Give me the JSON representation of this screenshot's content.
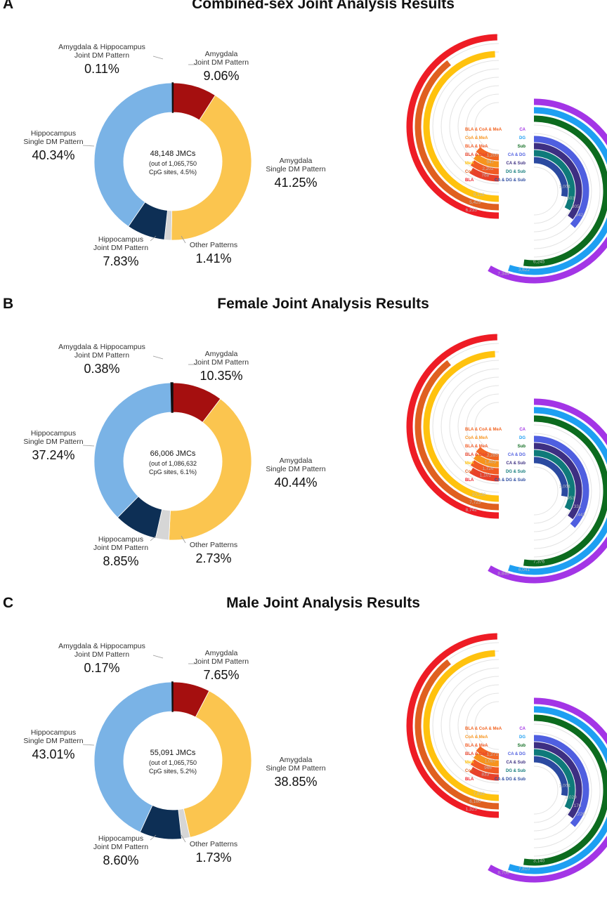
{
  "panels": [
    {
      "letter": "A",
      "title": "Combined-sex Joint Analysis Results",
      "center": {
        "main": "48,148 JMCs",
        "line2": "(out of 1,065,750",
        "line3": "CpG sites, 4.5%)"
      },
      "chart_data": {
        "type": "pie",
        "slices": [
          {
            "name_lines": [
              "Amygdala",
              "Joint DM Pattern"
            ],
            "pct_label": "9.06%",
            "value": 9.06,
            "color": "#a50f0f"
          },
          {
            "name_lines": [
              "Amygdala",
              "Single DM Pattern"
            ],
            "pct_label": "41.25%",
            "value": 41.25,
            "color": "#fbc54f"
          },
          {
            "name_lines": [
              "Other Patterns"
            ],
            "pct_label": "1.41%",
            "value": 1.41,
            "color": "#d6d6d6"
          },
          {
            "name_lines": [
              "Hippocampus",
              "Joint DM Pattern"
            ],
            "pct_label": "7.83%",
            "value": 7.83,
            "color": "#0d2f55"
          },
          {
            "name_lines": [
              "Hippocampus",
              "Single DM Pattern"
            ],
            "pct_label": "40.34%",
            "value": 40.34,
            "color": "#7ab3e6"
          },
          {
            "name_lines": [
              "Amygdala & Hippocampus",
              "Joint DM Pattern"
            ],
            "pct_label": "0.11%",
            "value": 0.11,
            "color": "#111111"
          }
        ]
      },
      "amygdala_arcs": {
        "labels": [
          "BLA & CoA & MeA",
          "CoA & MeA",
          "BLA & MeA",
          "BLA & CoA",
          "MeA",
          "CoA",
          "BLA"
        ],
        "colors": [
          "#f26522",
          "#f7941d",
          "#f15a24",
          "#e8412a",
          "#ffc20e",
          "#e06020",
          "#ee1c25"
        ],
        "values": [
          "1,200",
          "947",
          "2,202",
          "768",
          "9,118",
          "5,429",
          "6,233"
        ]
      },
      "hippocampus_arcs": {
        "labels": [
          "CA",
          "DG",
          "Sub",
          "CA & DG",
          "CA & Sub",
          "DG & Sub",
          "CA & DG & Sub"
        ],
        "colors": [
          "#a335e6",
          "#1e9ff2",
          "#0c6b1e",
          "#4f5fe0",
          "#3d2f82",
          "#0f7a7a",
          "#2b4aa0"
        ],
        "values": [
          "7,344",
          "3,622",
          "6,245",
          "942",
          "905",
          "603",
          "1,004"
        ]
      }
    },
    {
      "letter": "B",
      "title": "Female Joint Analysis Results",
      "center": {
        "main": "66,006 JMCs",
        "line2": "(out of 1,086,632",
        "line3": "CpG sites, 6.1%)"
      },
      "chart_data": {
        "type": "pie",
        "slices": [
          {
            "name_lines": [
              "Amygdala",
              "Joint DM Pattern"
            ],
            "pct_label": "10.35%",
            "value": 10.35,
            "color": "#a50f0f"
          },
          {
            "name_lines": [
              "Amygdala",
              "Single DM Pattern"
            ],
            "pct_label": "40.44%",
            "value": 40.44,
            "color": "#fbc54f"
          },
          {
            "name_lines": [
              "Other Patterns"
            ],
            "pct_label": "2.73%",
            "value": 2.73,
            "color": "#d6d6d6"
          },
          {
            "name_lines": [
              "Hippocampus",
              "Joint DM Pattern"
            ],
            "pct_label": "8.85%",
            "value": 8.85,
            "color": "#0d2f55"
          },
          {
            "name_lines": [
              "Hippocampus",
              "Single DM Pattern"
            ],
            "pct_label": "37.24%",
            "value": 37.24,
            "color": "#7ab3e6"
          },
          {
            "name_lines": [
              "Amygdala & Hippocampus",
              "Joint DM Pattern"
            ],
            "pct_label": "0.38%",
            "value": 0.38,
            "color": "#111111"
          }
        ]
      },
      "amygdala_arcs": {
        "labels": [
          "BLA & CoA & MeA",
          "CoA & MeA",
          "BLA & MeA",
          "BLA & CoA",
          "MeA",
          "CoA",
          "BLA"
        ],
        "colors": [
          "#f26522",
          "#f7941d",
          "#f15a24",
          "#e8412a",
          "#ffc20e",
          "#e06020",
          "#ee1c25"
        ],
        "values": [
          "2,285",
          "1,403",
          "1,726",
          "1,101",
          "10,230",
          "7,723",
          "8,742"
        ]
      },
      "hippocampus_arcs": {
        "labels": [
          "CA",
          "DG",
          "Sub",
          "CA & DG",
          "CA & Sub",
          "DG & Sub",
          "CA & DG & Sub"
        ],
        "colors": [
          "#a335e6",
          "#1e9ff2",
          "#0c6b1e",
          "#4f5fe0",
          "#3d2f82",
          "#0f7a7a",
          "#2b4aa0"
        ],
        "values": [
          "8,846",
          "6,041",
          "7,376",
          "1,442",
          "1,331",
          "953",
          "1,004"
        ]
      }
    },
    {
      "letter": "C",
      "title": "Male Joint Analysis Results",
      "center": {
        "main": "55,091 JMCs",
        "line2": "(out of 1,065,750",
        "line3": "CpG sites, 5.2%)"
      },
      "chart_data": {
        "type": "pie",
        "slices": [
          {
            "name_lines": [
              "Amygdala",
              "Joint DM Pattern"
            ],
            "pct_label": "7.65%",
            "value": 7.65,
            "color": "#a50f0f"
          },
          {
            "name_lines": [
              "Amygdala",
              "Single DM Pattern"
            ],
            "pct_label": "38.85%",
            "value": 38.85,
            "color": "#fbc54f"
          },
          {
            "name_lines": [
              "Other Patterns"
            ],
            "pct_label": "1.73%",
            "value": 1.73,
            "color": "#d6d6d6"
          },
          {
            "name_lines": [
              "Hippocampus",
              "Joint DM Pattern"
            ],
            "pct_label": "8.60%",
            "value": 8.6,
            "color": "#0d2f55"
          },
          {
            "name_lines": [
              "Hippocampus",
              "Single DM Pattern"
            ],
            "pct_label": "43.01%",
            "value": 43.01,
            "color": "#7ab3e6"
          },
          {
            "name_lines": [
              "Amygdala & Hippocampus",
              "Joint DM Pattern"
            ],
            "pct_label": "0.17%",
            "value": 0.17,
            "color": "#111111"
          }
        ]
      },
      "amygdala_arcs": {
        "labels": [
          "BLA & CoA & MeA",
          "CoA & MeA",
          "BLA & MeA",
          "BLA & CoA",
          "MeA",
          "CoA",
          "BLA"
        ],
        "colors": [
          "#f26522",
          "#f7941d",
          "#f15a24",
          "#e8412a",
          "#ffc20e",
          "#e06020",
          "#ee1c25"
        ],
        "values": [
          "1,271",
          "1,007",
          "966",
          "833",
          "7,893",
          "6,160",
          "1,323"
        ]
      },
      "hippocampus_arcs": {
        "labels": [
          "CA",
          "DG",
          "Sub",
          "CA & DG",
          "CA & Sub",
          "DG & Sub",
          "CA & DG & Sub"
        ],
        "colors": [
          "#a335e6",
          "#1e9ff2",
          "#0c6b1e",
          "#4f5fe0",
          "#3d2f82",
          "#0f7a7a",
          "#2b4aa0"
        ],
        "values": [
          "8,706",
          "7,810",
          "3,140",
          "1,226",
          "1,176",
          "1,029",
          "1,004"
        ]
      }
    }
  ]
}
